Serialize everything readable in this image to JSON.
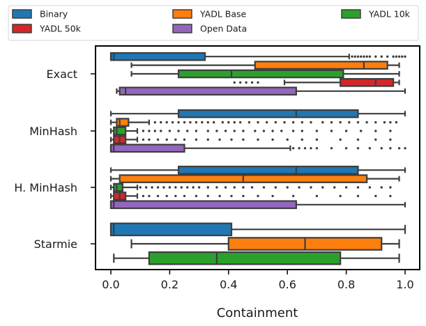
{
  "chart_data": {
    "type": "boxplot",
    "orientation": "horizontal",
    "title": "",
    "xlabel": "Containment",
    "ylabel": "",
    "xlim": [
      -0.05,
      1.05
    ],
    "xticks": [
      "0.0",
      "0.2",
      "0.4",
      "0.6",
      "0.8",
      "1.0"
    ],
    "categories": [
      "Exact",
      "MinHash",
      "H. MinHash",
      "Starmie"
    ],
    "legend": {
      "placement": "top",
      "columns": 3
    },
    "series": [
      {
        "name": "Binary",
        "color": "#1f77b4",
        "boxes": [
          {
            "whislo": 0.0,
            "q1": 0.0,
            "med": 0.01,
            "q3": 0.32,
            "whishi": 0.81,
            "outliers": [
              0.82,
              0.83,
              0.84,
              0.85,
              0.86,
              0.87,
              0.88,
              0.9,
              0.92,
              0.94,
              0.96,
              0.97,
              0.98,
              0.99,
              1.0
            ]
          },
          {
            "whislo": 0.0,
            "q1": 0.23,
            "med": 0.63,
            "q3": 0.84,
            "whishi": 1.0,
            "outliers": []
          },
          {
            "whislo": 0.0,
            "q1": 0.23,
            "med": 0.63,
            "q3": 0.84,
            "whishi": 1.0,
            "outliers": []
          },
          {
            "whislo": 0.0,
            "q1": 0.0,
            "med": 0.01,
            "q3": 0.41,
            "whishi": 1.0,
            "outliers": []
          }
        ]
      },
      {
        "name": "YADL Base",
        "color": "#ff7f0e",
        "boxes": [
          {
            "whislo": 0.07,
            "q1": 0.49,
            "med": 0.86,
            "q3": 0.94,
            "whishi": 0.98,
            "outliers": []
          },
          {
            "whislo": 0.0,
            "q1": 0.02,
            "med": 0.03,
            "q3": 0.06,
            "whishi": 0.13,
            "outliers": [
              0.15,
              0.17,
              0.19,
              0.21,
              0.23,
              0.25,
              0.27,
              0.29,
              0.31,
              0.33,
              0.35,
              0.38,
              0.4,
              0.42,
              0.44,
              0.47,
              0.5,
              0.53,
              0.56,
              0.59,
              0.62,
              0.65,
              0.68,
              0.72,
              0.75,
              0.78,
              0.81,
              0.84,
              0.87,
              0.9,
              0.93,
              0.95,
              0.97
            ]
          },
          {
            "whislo": 0.0,
            "q1": 0.03,
            "med": 0.45,
            "q3": 0.87,
            "whishi": 0.98,
            "outliers": []
          },
          {
            "whislo": 0.07,
            "q1": 0.4,
            "med": 0.66,
            "q3": 0.92,
            "whishi": 0.98,
            "outliers": []
          }
        ]
      },
      {
        "name": "YADL 10k",
        "color": "#2ca02c",
        "boxes": [
          {
            "whislo": 0.07,
            "q1": 0.23,
            "med": 0.41,
            "q3": 0.79,
            "whishi": 0.98,
            "outliers": []
          },
          {
            "whislo": 0.0,
            "q1": 0.01,
            "med": 0.02,
            "q3": 0.05,
            "whishi": 0.09,
            "outliers": [
              0.11,
              0.13,
              0.15,
              0.17,
              0.2,
              0.23,
              0.26,
              0.29,
              0.33,
              0.36,
              0.39,
              0.42,
              0.45,
              0.49,
              0.52,
              0.55,
              0.58,
              0.62,
              0.65,
              0.7,
              0.75,
              0.8,
              0.85,
              0.9,
              0.95
            ]
          },
          {
            "whislo": 0.0,
            "q1": 0.01,
            "med": 0.02,
            "q3": 0.04,
            "whishi": 0.09,
            "outliers": [
              0.1,
              0.12,
              0.14,
              0.16,
              0.18,
              0.2,
              0.22,
              0.24,
              0.26,
              0.28,
              0.3,
              0.33,
              0.36,
              0.39,
              0.42,
              0.45,
              0.48,
              0.52,
              0.56,
              0.6,
              0.64,
              0.68,
              0.72,
              0.76,
              0.8,
              0.84,
              0.88,
              0.92,
              0.95
            ]
          },
          {
            "whislo": 0.01,
            "q1": 0.13,
            "med": 0.36,
            "q3": 0.78,
            "whishi": 0.98,
            "outliers": []
          }
        ]
      },
      {
        "name": "YADL 50k",
        "color": "#d62728",
        "boxes": [
          {
            "whislo": 0.59,
            "q1": 0.78,
            "med": 0.9,
            "q3": 0.96,
            "whishi": 0.98,
            "outliers": [
              0.42,
              0.44,
              0.46,
              0.48,
              0.5
            ]
          },
          {
            "whislo": 0.0,
            "q1": 0.01,
            "med": 0.03,
            "q3": 0.05,
            "whishi": 0.09,
            "outliers": [
              0.11,
              0.13,
              0.16,
              0.19,
              0.22,
              0.25,
              0.29,
              0.33,
              0.37,
              0.41,
              0.45,
              0.5,
              0.55,
              0.6,
              0.65,
              0.7,
              0.78,
              0.84,
              0.9,
              0.95
            ]
          },
          {
            "whislo": 0.0,
            "q1": 0.01,
            "med": 0.03,
            "q3": 0.05,
            "whishi": 0.09,
            "outliers": [
              0.11,
              0.13,
              0.16,
              0.19,
              0.22,
              0.25,
              0.29,
              0.33,
              0.37,
              0.41,
              0.45,
              0.5,
              0.55,
              0.62,
              0.7,
              0.78,
              0.84,
              0.9,
              0.95
            ]
          }
        ]
      },
      {
        "name": "Open Data",
        "color": "#9467bd",
        "boxes": [
          {
            "whislo": 0.02,
            "q1": 0.03,
            "med": 0.05,
            "q3": 0.63,
            "whishi": 1.0,
            "outliers": []
          },
          {
            "whislo": 0.0,
            "q1": 0.0,
            "med": 0.01,
            "q3": 0.25,
            "whishi": 0.61,
            "outliers": [
              0.62,
              0.64,
              0.66,
              0.68,
              0.7,
              0.75,
              0.8,
              0.84,
              0.88,
              0.92,
              0.95,
              0.98,
              1.0
            ]
          },
          {
            "whislo": 0.0,
            "q1": 0.0,
            "med": 0.01,
            "q3": 0.63,
            "whishi": 1.0,
            "outliers": []
          }
        ]
      }
    ]
  }
}
